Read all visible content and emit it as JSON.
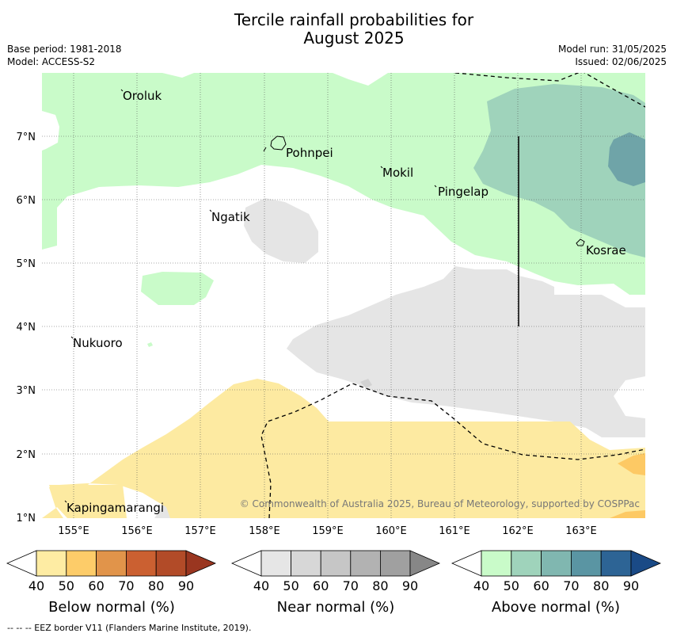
{
  "title_line1": "Tercile rainfall probabilities for",
  "title_line2": "August 2025",
  "base_period": "Base period: 1981-2018",
  "model": "Model: ACCESS-S2",
  "model_run": "Model run: 31/05/2025",
  "issued": "Issued: 02/06/2025",
  "credit": "© Commonwealth of Australia 2025, Bureau of Meteorology, supported by COSPPac",
  "footer": "-- -- -- EEZ border V11 (Flanders Marine Institute, 2019).",
  "map": {
    "lat_labels": [
      "7°N",
      "6°N",
      "5°N",
      "4°N",
      "3°N",
      "2°N",
      "1°N"
    ],
    "lon_labels": [
      "155°E",
      "156°E",
      "157°E",
      "158°E",
      "159°E",
      "160°E",
      "161°E",
      "162°E",
      "163°E"
    ],
    "places": {
      "oroluk": "Oroluk",
      "pohnpei": "Pohnpei",
      "mokil": "Mokil",
      "pingelap": "Pingelap",
      "ngatik": "Ngatik",
      "kosrae": "Kosrae",
      "nukuoro": "Nukuoro",
      "kapingamarangi": "Kapingamarangi"
    }
  },
  "colorbars": {
    "ticks": [
      "40",
      "50",
      "60",
      "70",
      "80",
      "90"
    ],
    "below": {
      "title": "Below normal (%)",
      "colors": [
        "#ffffff",
        "#feeca3",
        "#fdcc69",
        "#e1944a",
        "#cb6031",
        "#b24b28",
        "#9a3620"
      ]
    },
    "near": {
      "title": "Near normal (%)",
      "colors": [
        "#ffffff",
        "#e6e6e6",
        "#d7d7d7",
        "#c6c6c6",
        "#b2b2b2",
        "#a0a0a0",
        "#878787"
      ]
    },
    "above": {
      "title": "Above normal (%)",
      "colors": [
        "#ffffff",
        "#c9fbc9",
        "#9fd3bb",
        "#80b7b0",
        "#5a95a3",
        "#2d6495",
        "#1a4a86"
      ]
    }
  },
  "legend_colors": {
    "above_50": "#c9fbc9",
    "above_60": "#9fd3bb",
    "above_70": "#6fa4a8",
    "near_40": "#e5e5e5",
    "below_50": "#fdeaa1",
    "below_60": "#fdc964"
  }
}
